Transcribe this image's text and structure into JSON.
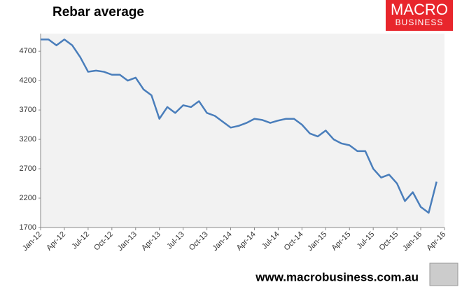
{
  "chart_data": {
    "type": "line",
    "title": "Rebar average",
    "x": [
      0,
      1,
      2,
      3,
      4,
      5,
      6,
      7,
      8,
      9,
      10,
      11,
      12,
      13,
      14,
      15,
      16,
      17,
      18,
      19,
      20,
      21,
      22,
      23,
      24,
      25,
      26,
      27,
      28,
      29,
      30,
      31,
      32,
      33,
      34,
      35,
      36,
      37,
      38,
      39,
      40,
      41,
      42,
      43,
      44,
      45,
      46,
      47,
      48,
      49,
      50
    ],
    "series": [
      {
        "name": "Rebar average",
        "color": "#4a7ebb",
        "values": [
          4900,
          4900,
          4800,
          4900,
          4800,
          4600,
          4350,
          4370,
          4350,
          4300,
          4300,
          4200,
          4250,
          4050,
          3950,
          3550,
          3750,
          3650,
          3780,
          3750,
          3850,
          3650,
          3600,
          3500,
          3400,
          3430,
          3480,
          3550,
          3530,
          3480,
          3520,
          3550,
          3550,
          3450,
          3300,
          3250,
          3350,
          3200,
          3130,
          3100,
          3000,
          3000,
          2700,
          2550,
          2600,
          2450,
          2150,
          2300,
          2050,
          1950,
          2480
        ]
      }
    ],
    "xlim": [
      0,
      51
    ],
    "xticks": [
      {
        "value": 0,
        "label": "Jan-12"
      },
      {
        "value": 3,
        "label": "Apr-12"
      },
      {
        "value": 6,
        "label": "Jul-12"
      },
      {
        "value": 9,
        "label": "Oct-12"
      },
      {
        "value": 12,
        "label": "Jan-13"
      },
      {
        "value": 15,
        "label": "Apr-13"
      },
      {
        "value": 18,
        "label": "Jul-13"
      },
      {
        "value": 21,
        "label": "Oct-13"
      },
      {
        "value": 24,
        "label": "Jan-14"
      },
      {
        "value": 27,
        "label": "Apr-14"
      },
      {
        "value": 30,
        "label": "Jul-14"
      },
      {
        "value": 33,
        "label": "Oct-14"
      },
      {
        "value": 36,
        "label": "Jan-15"
      },
      {
        "value": 39,
        "label": "Apr-15"
      },
      {
        "value": 42,
        "label": "Jul-15"
      },
      {
        "value": 45,
        "label": "Oct-15"
      },
      {
        "value": 48,
        "label": "Jan-16"
      },
      {
        "value": 51,
        "label": "Apr-16"
      }
    ],
    "ylim": [
      1700,
      5000
    ],
    "yticks": [
      1700,
      2200,
      2700,
      3200,
      3700,
      4200,
      4700
    ]
  },
  "branding": {
    "logo_top": "MACRO",
    "logo_bottom": "BUSINESS",
    "footer": "www.macrobusiness.com.au"
  }
}
